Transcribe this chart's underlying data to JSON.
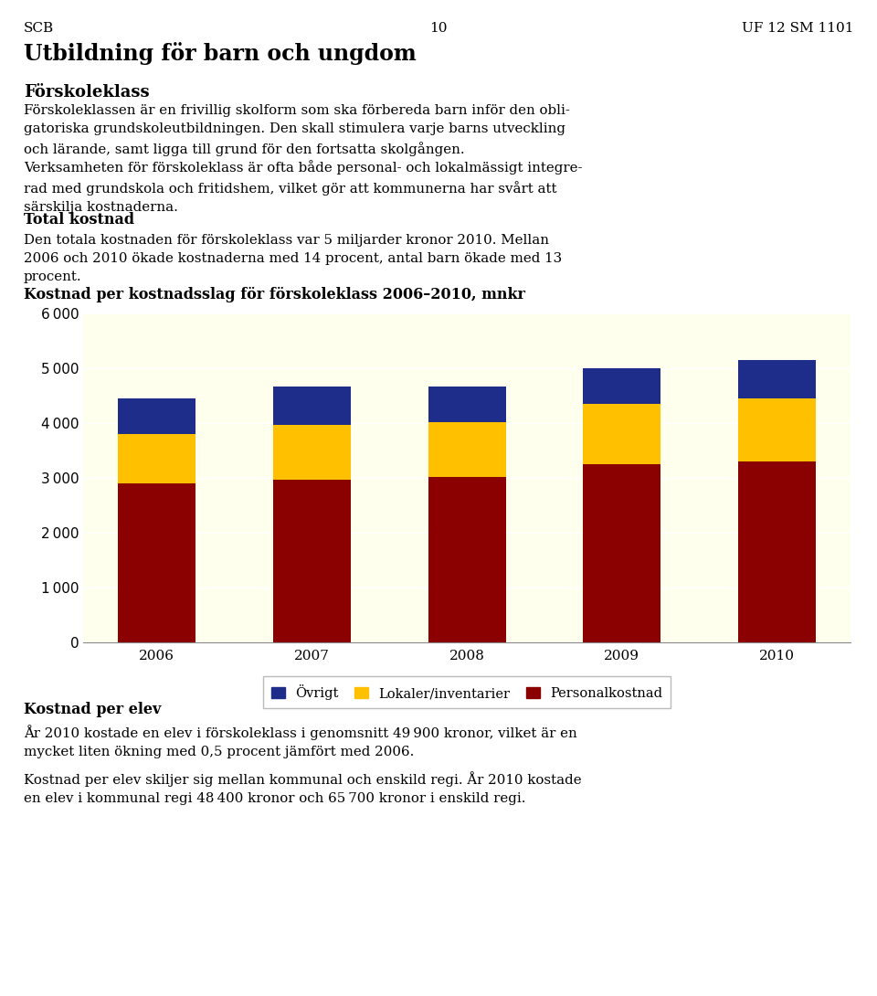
{
  "years": [
    "2006",
    "2007",
    "2008",
    "2009",
    "2010"
  ],
  "personalkostnad": [
    2900,
    2970,
    3020,
    3250,
    3300
  ],
  "lokaler": [
    900,
    1000,
    1000,
    1100,
    1150
  ],
  "ovrigt": [
    650,
    700,
    650,
    650,
    700
  ],
  "colors": {
    "personalkostnad": "#8B0000",
    "lokaler": "#FFC000",
    "ovrigt": "#1F2D8A"
  },
  "chart_title": "Kostnad per kostnadsslag för förskoleklass 2006–2010, mnkr",
  "ylim": [
    0,
    6000
  ],
  "yticks": [
    0,
    1000,
    2000,
    3000,
    4000,
    5000,
    6000
  ],
  "background_color": "#FFFFEE",
  "page_header_left": "SCB",
  "page_header_center": "10",
  "page_header_right": "UF 12 SM 1101",
  "title_text": "Utbildning för barn och ungdom",
  "subtitle_text": "Förskoleklass"
}
